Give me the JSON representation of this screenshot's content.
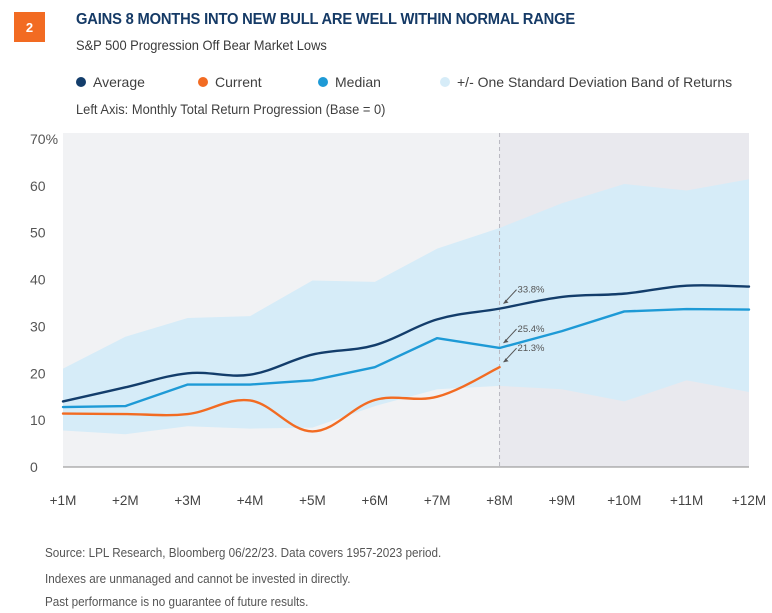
{
  "badge": "2",
  "title": "GAINS 8 MONTHS INTO NEW BULL ARE WELL WITHIN NORMAL RANGE",
  "subtitle": "S&P 500 Progression Off Bear Market Lows",
  "axis_note": "Left Axis: Monthly Total Return Progression (Base = 0)",
  "legend": [
    {
      "label": "Average",
      "color": "#133d6b"
    },
    {
      "label": "Current",
      "color": "#f26b22"
    },
    {
      "label": "Median",
      "color": "#1e9ad6"
    },
    {
      "label": "+/- One Standard Deviation Band of Returns",
      "color": "#d6ecf8"
    }
  ],
  "footer": {
    "source": "Source: LPL Research, Bloomberg  06/22/23. Data covers 1957-2023 period.",
    "disclaimer1": "Indexes are unmanaged and cannot be invested in directly.",
    "disclaimer2": "Past performance is no guarantee of future results."
  },
  "colors": {
    "plot_bg": "#f1f2f4",
    "forecast_bg": "#e9e9ee",
    "band": "#d6ecf8",
    "average": "#133d6b",
    "current": "#f26b22",
    "median": "#1e9ad6",
    "axis": "#8a8a8a",
    "annotation": "#555555"
  },
  "chart_data": {
    "type": "line",
    "title": "GAINS 8 MONTHS INTO NEW BULL ARE WELL WITHIN NORMAL RANGE",
    "subtitle": "S&P 500 Progression Off Bear Market Lows",
    "xlabel": "",
    "ylabel": "Monthly Total Return Progression (Base = 0)",
    "categories": [
      "+1M",
      "+2M",
      "+3M",
      "+4M",
      "+5M",
      "+6M",
      "+7M",
      "+8M",
      "+9M",
      "+10M",
      "+11M",
      "+12M"
    ],
    "ylim": [
      0,
      70
    ],
    "yticks": [
      0,
      10,
      20,
      30,
      40,
      50,
      60,
      70
    ],
    "ytick_labels": [
      "0",
      "10",
      "20",
      "30",
      "40",
      "50",
      "60",
      "70%"
    ],
    "grid": false,
    "legend_position": "top",
    "shaded_region_from": "+8M",
    "series": [
      {
        "name": "Average",
        "values": [
          14.0,
          17.0,
          20.0,
          19.7,
          24.0,
          26.0,
          31.5,
          33.8,
          36.3,
          37.0,
          38.7,
          38.5
        ]
      },
      {
        "name": "Current",
        "values": [
          11.4,
          11.3,
          11.3,
          14.2,
          7.6,
          14.3,
          15.0,
          21.3
        ]
      },
      {
        "name": "Median",
        "values": [
          12.8,
          13.0,
          17.6,
          17.6,
          18.5,
          21.3,
          27.5,
          25.4,
          29.0,
          33.2,
          33.7,
          33.6
        ]
      }
    ],
    "band": {
      "name": "+/- One Standard Deviation Band of Returns",
      "upper": [
        21.0,
        27.8,
        31.8,
        32.2,
        39.8,
        39.5,
        46.6,
        51.0,
        56.3,
        60.4,
        59.0,
        61.4
      ],
      "lower": [
        7.8,
        7.0,
        8.7,
        8.2,
        8.4,
        13.0,
        16.6,
        17.3,
        16.6,
        14.0,
        18.5,
        16.0
      ]
    },
    "annotations": [
      {
        "text": "33.8%",
        "series": "Average",
        "x": "+8M",
        "y": 33.8
      },
      {
        "text": "25.4%",
        "series": "Median",
        "x": "+8M",
        "y": 25.4
      },
      {
        "text": "21.3%",
        "series": "Current",
        "x": "+8M",
        "y": 21.3
      }
    ]
  }
}
